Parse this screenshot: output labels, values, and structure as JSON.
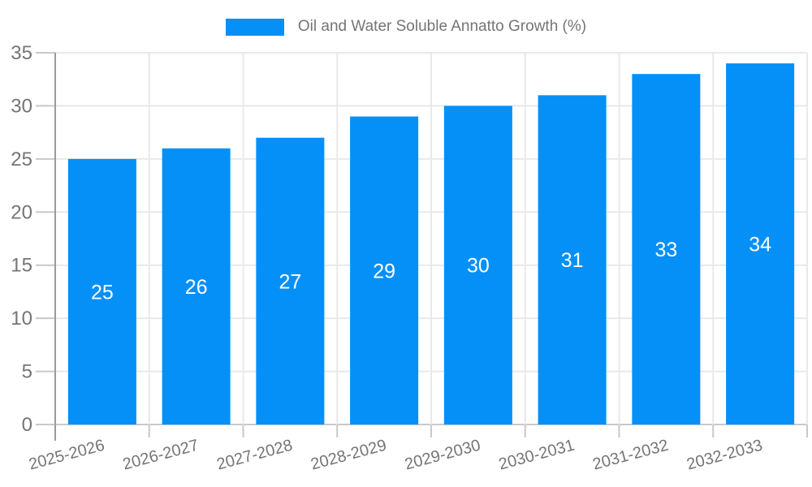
{
  "chart_data": {
    "type": "bar",
    "title": "",
    "legend": "Oil and Water Soluble Annatto Growth (%)",
    "legend_position": "top-center",
    "categories": [
      "2025-2026",
      "2026-2027",
      "2027-2028",
      "2028-2029",
      "2029-2030",
      "2030-2031",
      "2031-2032",
      "2032-2033"
    ],
    "values": [
      25,
      26,
      27,
      29,
      30,
      31,
      33,
      34
    ],
    "xlabel": "",
    "ylabel": "",
    "ylim": [
      0,
      35
    ],
    "yticks": [
      0,
      5,
      10,
      15,
      20,
      25,
      30,
      35
    ],
    "grid": "on",
    "value_labels_inside_bars": true,
    "x_label_rotation_deg": -15,
    "colors": {
      "bar": "#0590f8",
      "value_label": "#ffffff",
      "axis_text": "#757575",
      "axis_line": "#9b9b9b",
      "grid": "#e9e9e9",
      "tick": "#c9c9c9",
      "background": "#ffffff"
    }
  }
}
